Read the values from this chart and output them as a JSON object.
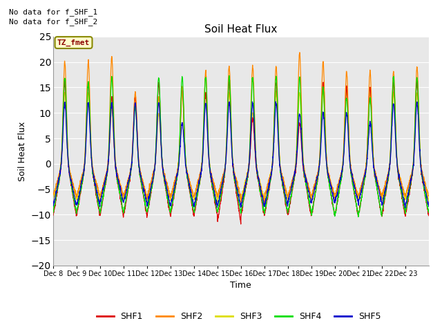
{
  "title": "Soil Heat Flux",
  "ylabel": "Soil Heat Flux",
  "xlabel": "Time",
  "ylim": [
    -20,
    25
  ],
  "yticks": [
    -20,
    -15,
    -10,
    -5,
    0,
    5,
    10,
    15,
    20,
    25
  ],
  "xtick_labels": [
    "Dec 8",
    "Dec 9",
    "Dec 10",
    "Dec 11",
    "Dec 12",
    "Dec 13",
    "Dec 14",
    "Dec 15",
    "Dec 16",
    "Dec 17",
    "Dec 18",
    "Dec 19",
    "Dec 20",
    "Dec 21",
    "Dec 22",
    "Dec 23"
  ],
  "colors": {
    "SHF1": "#dd0000",
    "SHF2": "#ff8800",
    "SHF3": "#dddd00",
    "SHF4": "#00dd00",
    "SHF5": "#0000cc"
  },
  "bg_color": "#e8e8e8",
  "annotation1": "No data for f_SHF_1",
  "annotation2": "No data for f_SHF_2",
  "legend_label": "TZ_fmet",
  "n_days": 16,
  "start_day": 8,
  "figsize": [
    6.4,
    4.8
  ],
  "dpi": 100
}
